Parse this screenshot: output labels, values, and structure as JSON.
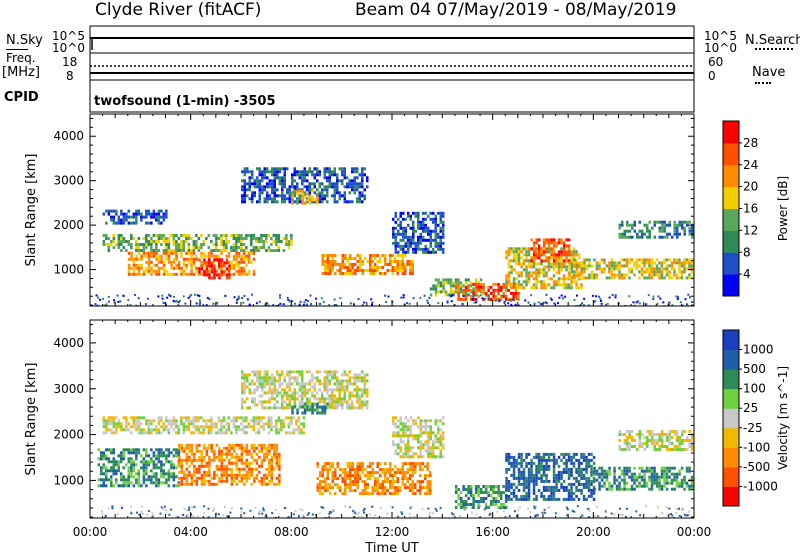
{
  "title": {
    "left": "Clyde River (fitACF)",
    "right": "Beam 04 07/May/2019 - 08/May/2019"
  },
  "header_panels": {
    "nsky": {
      "label": "N.Sky",
      "ticks_left": [
        "10^5",
        "10^0"
      ]
    },
    "nsearch": {
      "label": "N.Search",
      "ticks_right": [
        "10^5",
        "10^0"
      ]
    },
    "freq": {
      "label_line1": "Freq.",
      "label_line2": "[MHz]",
      "ticks_left": [
        "18",
        "8"
      ]
    },
    "nave": {
      "label": "Nave",
      "ticks_right": [
        "60",
        "0"
      ]
    },
    "cpid": {
      "label": "CPID",
      "value": "twofsound (1-min) -3505"
    }
  },
  "chart_data": [
    {
      "type": "heatmap",
      "ylabel": "Slant Range [km]",
      "xlabel": "",
      "x_ticks": [
        "00:00",
        "04:00",
        "08:00",
        "12:00",
        "16:00",
        "20:00",
        "00:00"
      ],
      "x_range_hours": [
        0,
        24
      ],
      "y_ticks": [
        1000,
        2000,
        3000,
        4000
      ],
      "ylim": [
        180,
        4500
      ],
      "colorbar": {
        "label": "Power [dB]",
        "ticks": [
          "28",
          "24",
          "20",
          "16",
          "12",
          "8",
          "4"
        ],
        "colors": [
          "#0000ff",
          "#1f4fc8",
          "#2e8b57",
          "#5aa65a",
          "#f0d000",
          "#ff8c00",
          "#ff5000",
          "#ff0000"
        ]
      },
      "echo_regions": [
        {
          "t0": 0.5,
          "t1": 3.0,
          "r0": 2050,
          "r1": 2350,
          "level": 1
        },
        {
          "t0": 0.5,
          "t1": 8.0,
          "r0": 1450,
          "r1": 1800,
          "level": 3
        },
        {
          "t0": 1.5,
          "t1": 6.5,
          "r0": 900,
          "r1": 1400,
          "level": 5
        },
        {
          "t0": 4.3,
          "t1": 5.5,
          "r0": 800,
          "r1": 1250,
          "level": 7
        },
        {
          "t0": 6.0,
          "t1": 11.0,
          "r0": 2500,
          "r1": 3300,
          "level": 1
        },
        {
          "t0": 8.0,
          "t1": 9.0,
          "r0": 2500,
          "r1": 2800,
          "level": 4
        },
        {
          "t0": 9.2,
          "t1": 12.8,
          "r0": 900,
          "r1": 1350,
          "level": 5
        },
        {
          "t0": 12.0,
          "t1": 14.0,
          "r0": 1400,
          "r1": 2300,
          "level": 1
        },
        {
          "t0": 13.5,
          "t1": 15.5,
          "r0": 450,
          "r1": 800,
          "level": 3
        },
        {
          "t0": 14.5,
          "t1": 17.0,
          "r0": 300,
          "r1": 700,
          "level": 6
        },
        {
          "t0": 16.5,
          "t1": 19.5,
          "r0": 600,
          "r1": 1500,
          "level": 4
        },
        {
          "t0": 17.5,
          "t1": 19.0,
          "r0": 1200,
          "r1": 1700,
          "level": 6
        },
        {
          "t0": 19.0,
          "t1": 24.0,
          "r0": 800,
          "r1": 1250,
          "level": 4
        },
        {
          "t0": 21.0,
          "t1": 24.0,
          "r0": 1700,
          "r1": 2100,
          "level": 2
        }
      ]
    },
    {
      "type": "heatmap",
      "ylabel": "Slant Range [km]",
      "xlabel": "Time UT",
      "x_ticks": [
        "00:00",
        "04:00",
        "08:00",
        "12:00",
        "16:00",
        "20:00",
        "00:00"
      ],
      "x_range_hours": [
        0,
        24
      ],
      "y_ticks": [
        1000,
        2000,
        3000,
        4000
      ],
      "ylim": [
        180,
        4500
      ],
      "colorbar": {
        "label": "Velocity [m s^-1]",
        "unit_superscript": "-1",
        "ticks": [
          "1000",
          "500",
          "100",
          "25",
          "-25",
          "-100",
          "-500",
          "-1000"
        ],
        "colors": [
          "#ff0000",
          "#ff5000",
          "#ff8c00",
          "#f0b800",
          "#c8c8c8",
          "#6fd040",
          "#2e8b57",
          "#1f5fa8",
          "#1a3fc0"
        ]
      },
      "echo_regions": [
        {
          "t0": 0.5,
          "t1": 8.5,
          "r0": 2050,
          "r1": 2400,
          "level": 4
        },
        {
          "t0": 0.3,
          "t1": 3.5,
          "r0": 900,
          "r1": 1700,
          "level": 6
        },
        {
          "t0": 3.5,
          "t1": 7.5,
          "r0": 900,
          "r1": 1800,
          "level": 2
        },
        {
          "t0": 6.0,
          "t1": 11.0,
          "r0": 2600,
          "r1": 3400,
          "level": 4
        },
        {
          "t0": 8.0,
          "t1": 9.5,
          "r0": 2500,
          "r1": 2700,
          "level": 6
        },
        {
          "t0": 9.0,
          "t1": 13.5,
          "r0": 700,
          "r1": 1400,
          "level": 2
        },
        {
          "t0": 12.0,
          "t1": 14.0,
          "r0": 1500,
          "r1": 2400,
          "level": 4
        },
        {
          "t0": 14.5,
          "t1": 16.5,
          "r0": 400,
          "r1": 900,
          "level": 6
        },
        {
          "t0": 16.5,
          "t1": 20.0,
          "r0": 600,
          "r1": 1600,
          "level": 7
        },
        {
          "t0": 20.0,
          "t1": 24.0,
          "r0": 800,
          "r1": 1300,
          "level": 6
        },
        {
          "t0": 21.0,
          "t1": 24.0,
          "r0": 1700,
          "r1": 2100,
          "level": 4
        }
      ]
    }
  ]
}
